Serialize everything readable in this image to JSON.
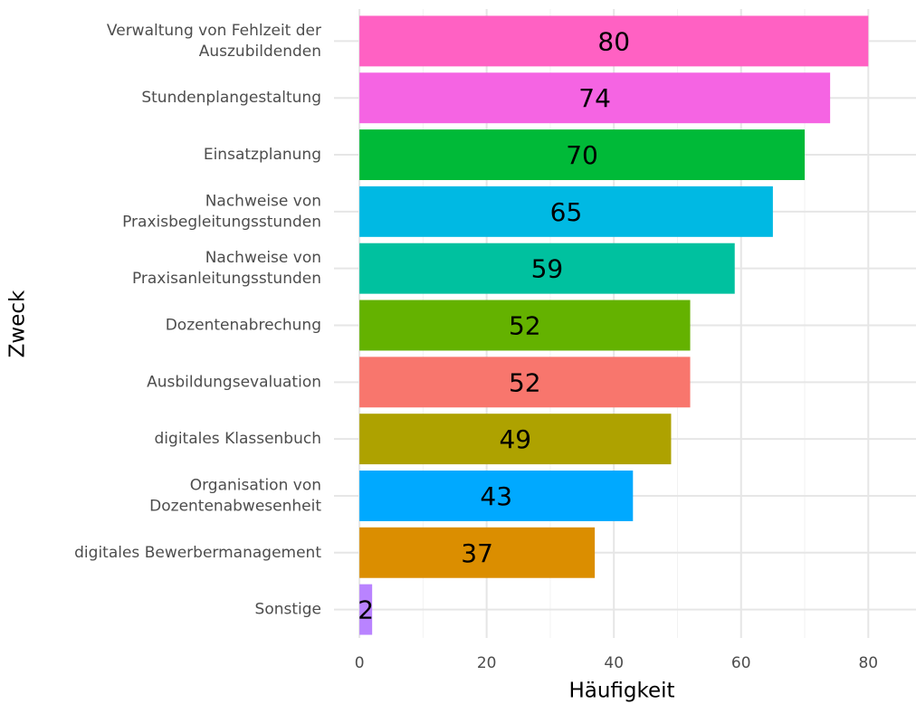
{
  "chart_data": {
    "type": "barh",
    "categories": [
      "Verwaltung von Fehlzeit der\nAuszubildenden",
      "Stundenplangestaltung",
      "Einsatzplanung",
      "Nachweise von\nPraxisbegleitungsstunden",
      "Nachweise von\nPraxisanleitungsstunden",
      "Dozentenabrechung",
      "Ausbildungsevaluation",
      "digitales Klassenbuch",
      "Organisation von\nDozentenabwesenheit",
      "digitales Bewerbermanagement",
      "Sonstige"
    ],
    "values": [
      80,
      74,
      70,
      65,
      59,
      52,
      52,
      49,
      43,
      37,
      2
    ],
    "colors": [
      "#FF61C3",
      "#F564E3",
      "#00BA38",
      "#00B9E3",
      "#00C19F",
      "#64B200",
      "#F8766D",
      "#AEA200",
      "#00A9FF",
      "#DB8E00",
      "#B983FF"
    ],
    "xlabel": "Häufigkeit",
    "ylabel": "Zweck",
    "xlim": [
      -4,
      87.5
    ],
    "xticks": [
      0,
      20,
      40,
      60,
      80
    ],
    "xminor": [
      10,
      30,
      50,
      70
    ],
    "grid": true
  }
}
